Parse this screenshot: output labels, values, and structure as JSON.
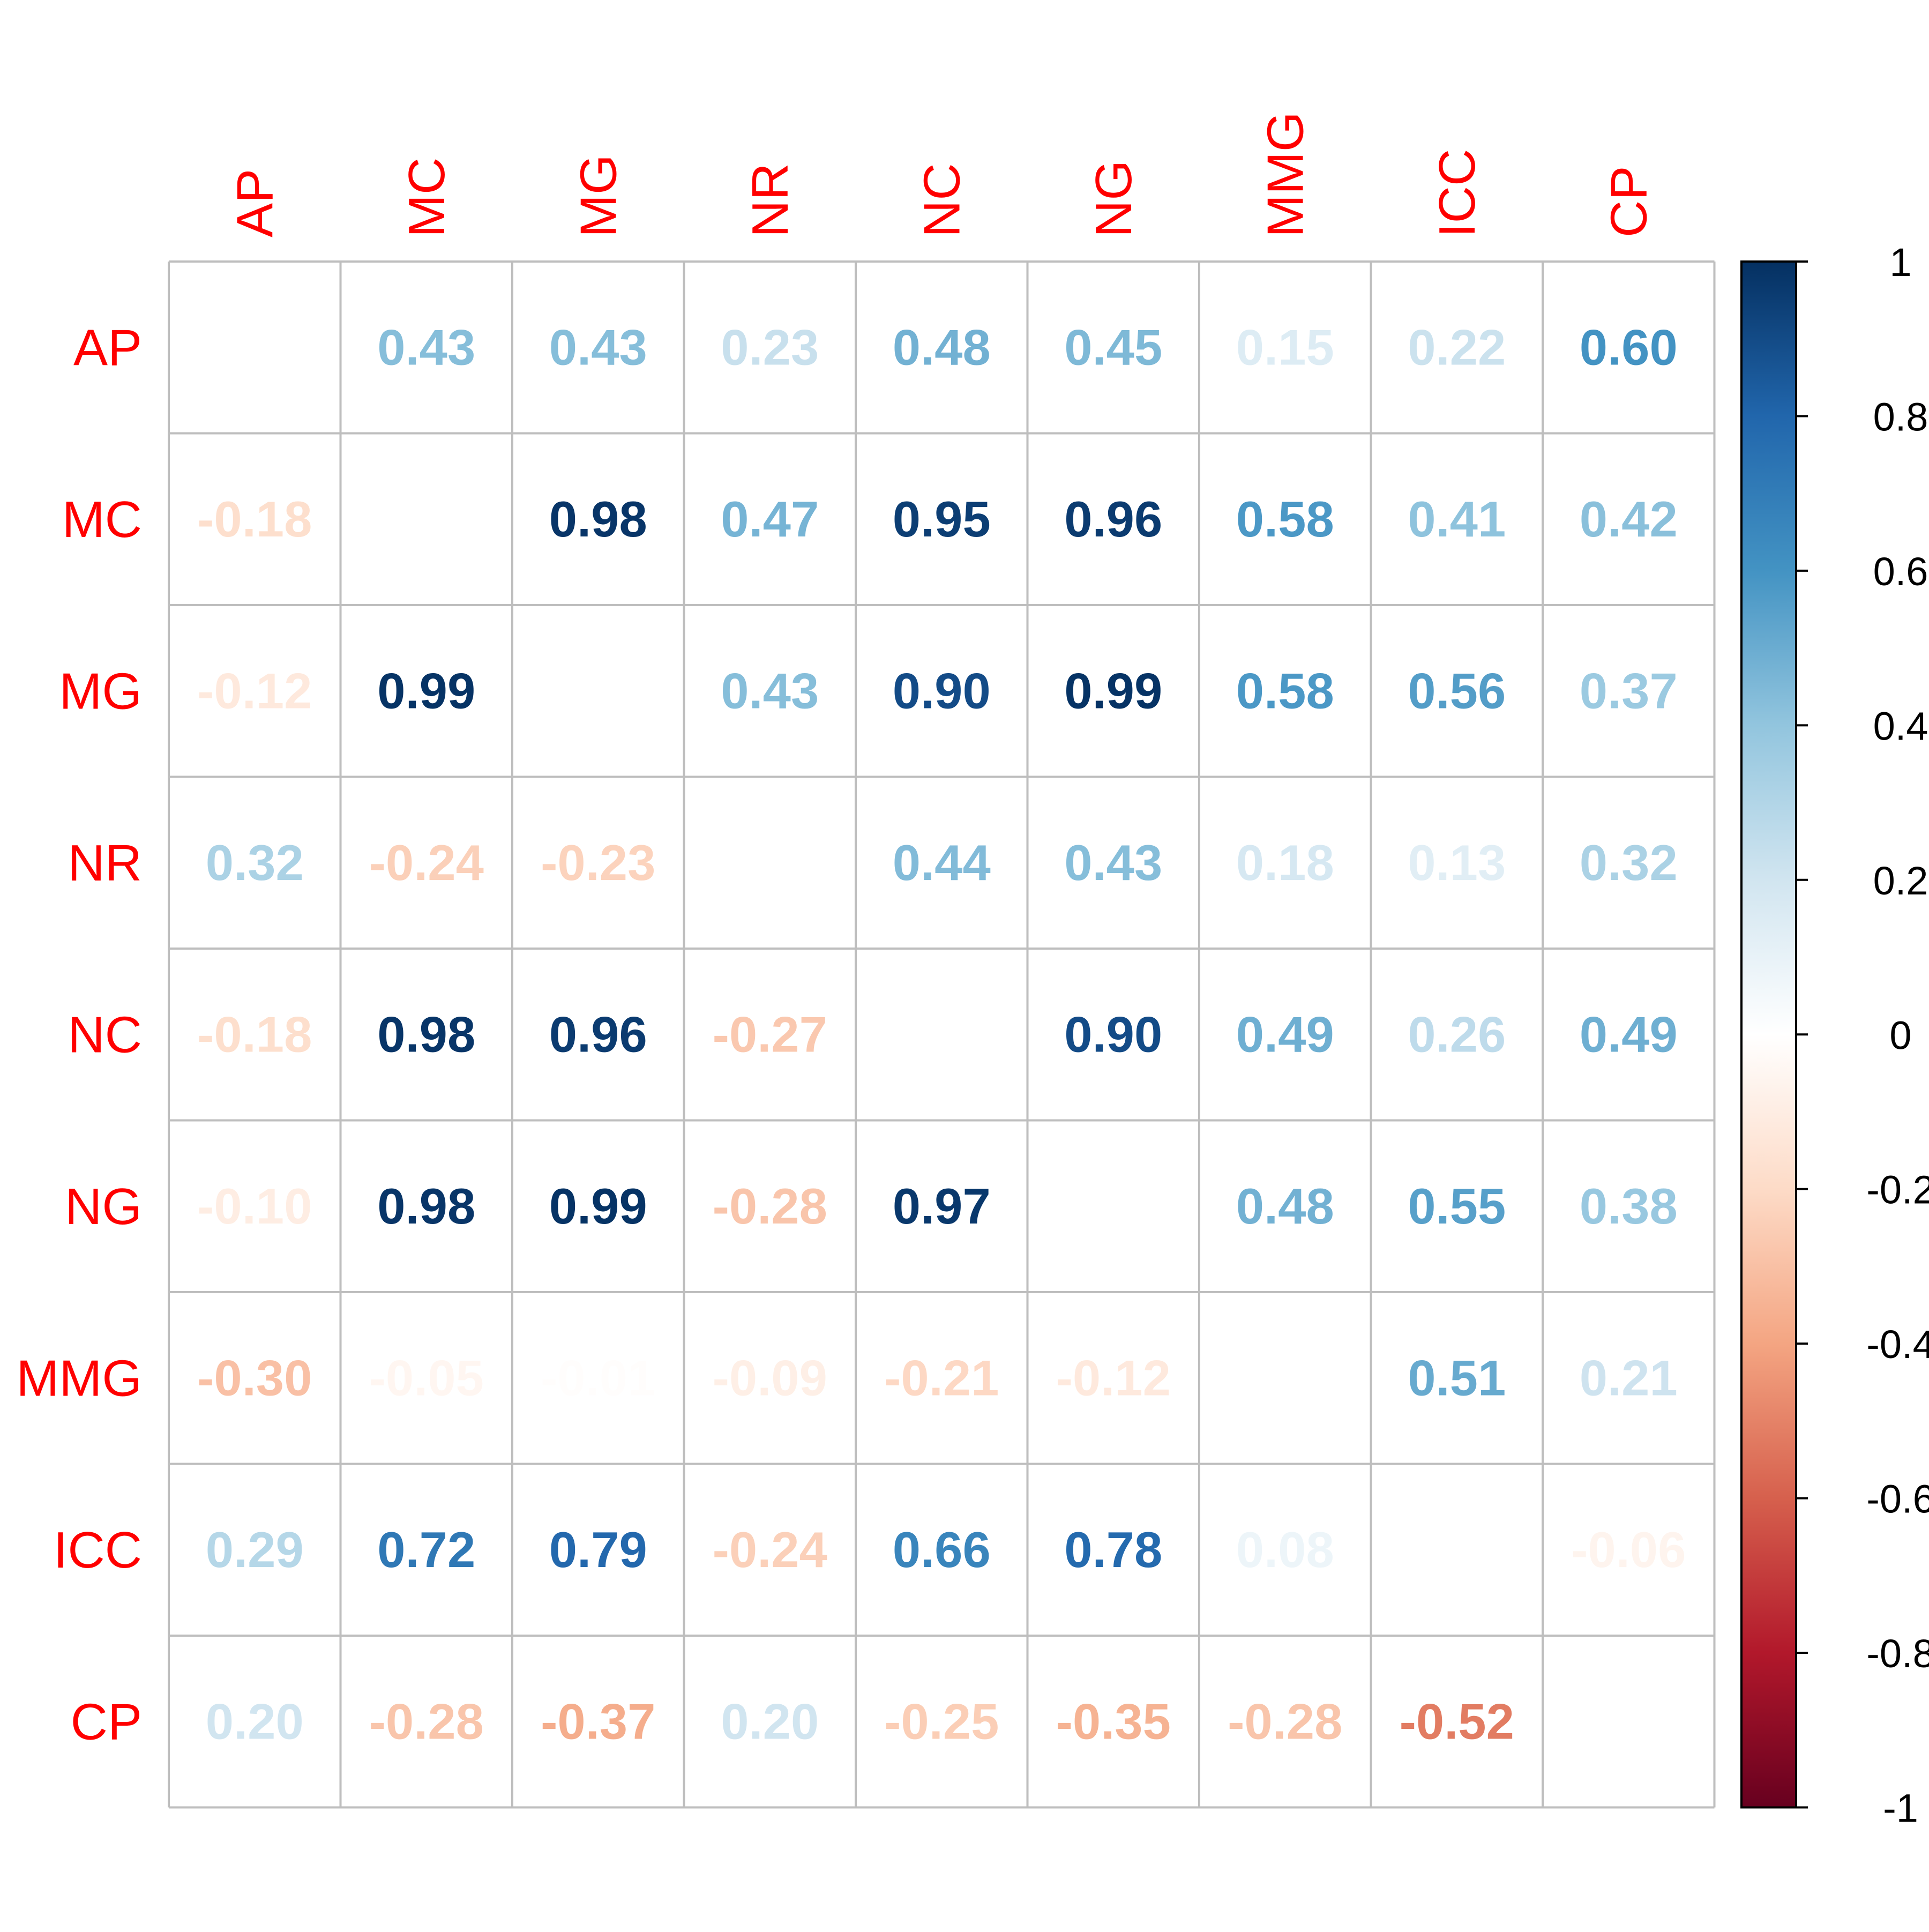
{
  "chart_data": {
    "type": "heatmap",
    "variables": [
      "AP",
      "MC",
      "MG",
      "NR",
      "NC",
      "NG",
      "MMG",
      "ICC",
      "CP"
    ],
    "matrix": [
      [
        null,
        0.43,
        0.43,
        0.23,
        0.48,
        0.45,
        0.15,
        0.22,
        0.6
      ],
      [
        -0.18,
        null,
        0.98,
        0.47,
        0.95,
        0.96,
        0.58,
        0.41,
        0.42
      ],
      [
        -0.12,
        0.99,
        null,
        0.43,
        0.9,
        0.99,
        0.58,
        0.56,
        0.37
      ],
      [
        0.32,
        -0.24,
        -0.23,
        null,
        0.44,
        0.43,
        0.18,
        0.13,
        0.32
      ],
      [
        -0.18,
        0.98,
        0.96,
        -0.27,
        null,
        0.9,
        0.49,
        0.26,
        0.49
      ],
      [
        -0.1,
        0.98,
        0.99,
        -0.28,
        0.97,
        null,
        0.48,
        0.55,
        0.38
      ],
      [
        -0.3,
        -0.05,
        -0.01,
        -0.09,
        -0.21,
        -0.12,
        null,
        0.51,
        0.21
      ],
      [
        0.29,
        0.72,
        0.79,
        -0.24,
        0.66,
        0.78,
        0.08,
        null,
        -0.06
      ],
      [
        0.2,
        -0.28,
        -0.37,
        0.2,
        -0.25,
        -0.35,
        -0.28,
        -0.52,
        null
      ]
    ],
    "labels": [
      [
        "",
        "0.43",
        "0.43",
        "0.23",
        "0.48",
        "0.45",
        "0.15",
        "0.22",
        "0.60"
      ],
      [
        "-0.18",
        "",
        "0.98",
        "0.47",
        "0.95",
        "0.96",
        "0.58",
        "0.41",
        "0.42"
      ],
      [
        "-0.12",
        "0.99",
        "",
        "0.43",
        "0.90",
        "0.99",
        "0.58",
        "0.56",
        "0.37"
      ],
      [
        "0.32",
        "-0.24",
        "-0.23",
        "",
        "0.44",
        "0.43",
        "0.18",
        "0.13",
        "0.32"
      ],
      [
        "-0.18",
        "0.98",
        "0.96",
        "-0.27",
        "",
        "0.90",
        "0.49",
        "0.26",
        "0.49"
      ],
      [
        "-0.10",
        "0.98",
        "0.99",
        "-0.28",
        "0.97",
        "",
        "0.48",
        "0.55",
        "0.38"
      ],
      [
        "-0.30",
        "-0.05",
        "-0.01",
        "-0.09",
        "-0.21",
        "-0.12",
        "",
        "0.51",
        "0.21"
      ],
      [
        "0.29",
        "0.72",
        "0.79",
        "-0.24",
        "0.66",
        "0.78",
        "0.08",
        "",
        "-0.06"
      ],
      [
        "0.20",
        "-0.28",
        "-0.37",
        "0.20",
        "-0.25",
        "-0.35",
        "-0.28",
        "-0.52",
        ""
      ]
    ],
    "colorbar": {
      "range": [
        -1,
        1
      ],
      "ticks": [
        "1",
        "0.8",
        "0.6",
        "0.4",
        "0.2",
        "0",
        "-0.2",
        "-0.4",
        "-0.6",
        "-0.8",
        "-1"
      ],
      "tick_values": [
        1,
        0.8,
        0.6,
        0.4,
        0.2,
        0,
        -0.2,
        -0.4,
        -0.6,
        -0.8,
        -1
      ],
      "palette": [
        "#67001F",
        "#B2182B",
        "#D6604D",
        "#F4A582",
        "#FDDBC7",
        "#FFFFFF",
        "#D1E5F0",
        "#92C5DE",
        "#4393C3",
        "#2166AC",
        "#053061"
      ],
      "placement": "right"
    },
    "grid": true,
    "colors": {
      "axis_labels": "#FF0000",
      "grid_lines": "#BEBEBE",
      "colorbar_text": "#000000"
    }
  }
}
